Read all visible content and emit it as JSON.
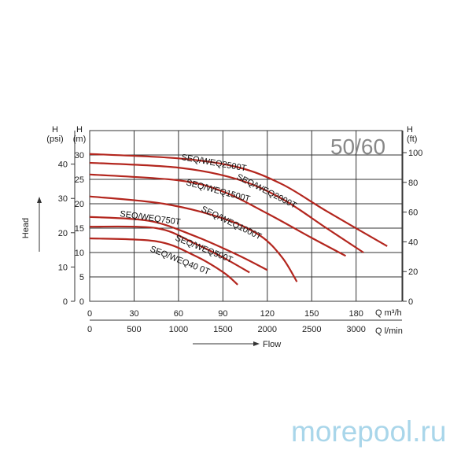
{
  "chart_data": {
    "type": "line",
    "badge": "50/60",
    "ylabel": "Head",
    "xlabel": "Flow",
    "y_axes": [
      {
        "unit_top": "H",
        "unit": "(psi)",
        "ticks": [
          0,
          10,
          20,
          30,
          40
        ]
      },
      {
        "unit_top": "H",
        "unit": "(m)",
        "ticks": [
          0,
          5,
          10,
          15,
          20,
          25,
          30
        ],
        "range": [
          0,
          35
        ]
      },
      {
        "unit_top": "H",
        "unit": "(ft)",
        "ticks": [
          0,
          20,
          40,
          60,
          80,
          100
        ]
      }
    ],
    "x_axes": [
      {
        "unit": "Q m³/h",
        "ticks": [
          0,
          30,
          60,
          90,
          120,
          150,
          180
        ],
        "range": [
          0,
          211
        ]
      },
      {
        "unit": "Q l/min",
        "ticks": [
          0,
          500,
          1000,
          1500,
          2000,
          2500,
          3000
        ]
      }
    ],
    "grid": true,
    "line_color": "#b3261e",
    "series": [
      {
        "name": "SEQ/WEQ2500T",
        "points": [
          [
            0,
            30.2
          ],
          [
            60,
            29.3
          ],
          [
            100,
            27.5
          ],
          [
            130,
            24
          ],
          [
            160,
            18.5
          ],
          [
            201,
            11.3
          ]
        ]
      },
      {
        "name": "SEQ/WEQ2000T",
        "points": [
          [
            0,
            28.4
          ],
          [
            60,
            27.4
          ],
          [
            100,
            25
          ],
          [
            130,
            21
          ],
          [
            160,
            15
          ],
          [
            185,
            10
          ]
        ]
      },
      {
        "name": "SEQ/WEQ1500T",
        "points": [
          [
            0,
            26
          ],
          [
            60,
            24.8
          ],
          [
            90,
            22.5
          ],
          [
            120,
            18
          ],
          [
            150,
            13
          ],
          [
            173,
            9.3
          ]
        ]
      },
      {
        "name": "SEQ/WEQ1000T",
        "points": [
          [
            0,
            21.5
          ],
          [
            50,
            20
          ],
          [
            90,
            17
          ],
          [
            115,
            13.5
          ],
          [
            130,
            9
          ],
          [
            140,
            4
          ]
        ]
      },
      {
        "name": "SEQ/WEQ750T",
        "points": [
          [
            0,
            17.3
          ],
          [
            40,
            16.5
          ],
          [
            70,
            13.5
          ],
          [
            100,
            9.5
          ],
          [
            120,
            6.4
          ]
        ]
      },
      {
        "name": "SEQ/WEQ500T",
        "points": [
          [
            0,
            15.3
          ],
          [
            45,
            15
          ],
          [
            70,
            12
          ],
          [
            90,
            9
          ],
          [
            108,
            5.9
          ]
        ]
      },
      {
        "name": "SEQ/WEQ40 0T",
        "points": [
          [
            0,
            12.9
          ],
          [
            45,
            12.3
          ],
          [
            70,
            9.5
          ],
          [
            90,
            6
          ],
          [
            100,
            3.4
          ]
        ]
      }
    ]
  },
  "watermark": "morepool.ru"
}
